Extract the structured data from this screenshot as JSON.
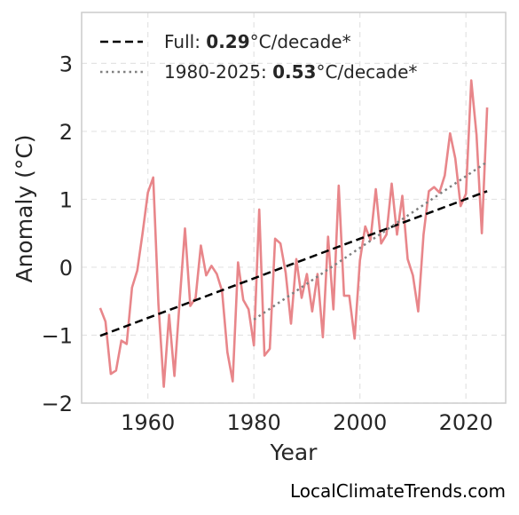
{
  "chart_data": {
    "type": "line",
    "xlabel": "Year",
    "ylabel": "Anomaly (°C)",
    "xlim": [
      1947.5,
      2027.5
    ],
    "ylim": [
      -2.0,
      3.75
    ],
    "xticks": [
      1960,
      1980,
      2000,
      2020
    ],
    "yticks": [
      -2,
      -1,
      0,
      1,
      2,
      3
    ],
    "ytick_labels": [
      "−2",
      "−1",
      "0",
      "1",
      "2",
      "3"
    ],
    "grid": true,
    "legend_position": "top-left",
    "series": [
      {
        "kind": "annual",
        "color": "#e8868a",
        "x": [
          1951,
          1952,
          1953,
          1954,
          1955,
          1956,
          1957,
          1958,
          1959,
          1960,
          1961,
          1962,
          1963,
          1964,
          1965,
          1966,
          1967,
          1968,
          1969,
          1970,
          1971,
          1972,
          1973,
          1974,
          1975,
          1976,
          1977,
          1978,
          1979,
          1980,
          1981,
          1982,
          1983,
          1984,
          1985,
          1986,
          1987,
          1988,
          1989,
          1990,
          1991,
          1992,
          1993,
          1994,
          1995,
          1996,
          1997,
          1998,
          1999,
          2000,
          2001,
          2002,
          2003,
          2004,
          2005,
          2006,
          2007,
          2008,
          2009,
          2010,
          2011,
          2012,
          2013,
          2014,
          2015,
          2016,
          2017,
          2018,
          2019,
          2020,
          2021,
          2022,
          2023,
          2024
        ],
        "y": [
          -0.6,
          -0.8,
          -1.57,
          -1.52,
          -1.08,
          -1.13,
          -0.3,
          -0.05,
          0.5,
          1.1,
          1.32,
          -0.55,
          -1.76,
          -0.7,
          -1.6,
          -0.5,
          0.57,
          -0.57,
          -0.45,
          0.32,
          -0.12,
          0.02,
          -0.1,
          -0.35,
          -1.25,
          -1.68,
          0.07,
          -0.48,
          -0.62,
          -1.15,
          0.85,
          -1.3,
          -1.2,
          0.42,
          0.35,
          -0.08,
          -0.83,
          0.12,
          -0.45,
          -0.1,
          -0.65,
          -0.1,
          -1.03,
          0.45,
          -0.62,
          1.2,
          -0.42,
          -0.42,
          -1.05,
          0.1,
          0.6,
          0.4,
          1.15,
          0.35,
          0.48,
          1.23,
          0.48,
          1.05,
          0.12,
          -0.12,
          -0.65,
          0.48,
          1.12,
          1.18,
          1.1,
          1.35,
          1.97,
          1.6,
          0.9,
          1.08,
          2.75,
          1.95,
          0.5,
          2.35
        ]
      },
      {
        "kind": "trend-full",
        "color": "#000000",
        "style": "dashed",
        "x": [
          1951,
          2024
        ],
        "y": [
          -1.01,
          1.12
        ]
      },
      {
        "kind": "trend-recent",
        "color": "#808080",
        "style": "dotted",
        "x": [
          1980,
          2024
        ],
        "y": [
          -0.77,
          1.55
        ]
      }
    ],
    "legend": [
      {
        "label_pre": "Full: ",
        "label_bold": "0.29",
        "label_post": "°C/decade*",
        "style": "dashed",
        "color": "#000000"
      },
      {
        "label_pre": "1980-2025: ",
        "label_bold": "0.53",
        "label_post": "°C/decade*",
        "style": "dotted",
        "color": "#808080"
      }
    ]
  },
  "watermark": "LocalClimateTrends.com"
}
